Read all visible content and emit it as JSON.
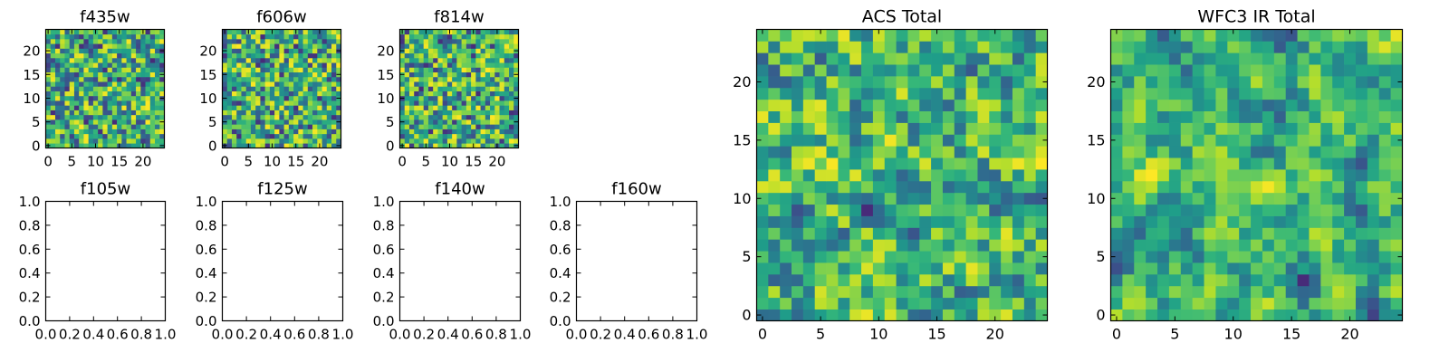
{
  "chart_data": {
    "type": "heatmap",
    "colormap": "viridis",
    "heatmap_panels": [
      {
        "title": "f435w",
        "grid_size": 25,
        "xticks": [
          0,
          5,
          10,
          15,
          20
        ],
        "yticks": [
          0,
          5,
          10,
          15,
          20
        ],
        "xlim": [
          -0.5,
          24.5
        ],
        "ylim": [
          -0.5,
          24.5
        ],
        "seed": 11,
        "smooth": 0
      },
      {
        "title": "f606w",
        "grid_size": 25,
        "xticks": [
          0,
          5,
          10,
          15,
          20
        ],
        "yticks": [
          0,
          5,
          10,
          15,
          20
        ],
        "xlim": [
          -0.5,
          24.5
        ],
        "ylim": [
          -0.5,
          24.5
        ],
        "seed": 23,
        "smooth": 0
      },
      {
        "title": "f814w",
        "grid_size": 25,
        "xticks": [
          0,
          5,
          10,
          15,
          20
        ],
        "yticks": [
          0,
          5,
          10,
          15,
          20
        ],
        "xlim": [
          -0.5,
          24.5
        ],
        "ylim": [
          -0.5,
          24.5
        ],
        "seed": 37,
        "smooth": 0
      },
      {
        "title": "ACS Total",
        "grid_size": 25,
        "xticks": [
          0,
          5,
          10,
          15,
          20
        ],
        "yticks": [
          0,
          5,
          10,
          15,
          20
        ],
        "xlim": [
          -0.5,
          24.5
        ],
        "ylim": [
          -0.5,
          24.5
        ],
        "seed": 51,
        "smooth": 1
      },
      {
        "title": "WFC3 IR Total",
        "grid_size": 25,
        "xticks": [
          0,
          5,
          10,
          15,
          20
        ],
        "yticks": [
          0,
          5,
          10,
          15,
          20
        ],
        "xlim": [
          -0.5,
          24.5
        ],
        "ylim": [
          -0.5,
          24.5
        ],
        "seed": 67,
        "smooth": 2
      }
    ],
    "empty_panels": [
      {
        "title": "f105w",
        "xlim": [
          0.0,
          1.0
        ],
        "ylim": [
          0.0,
          1.0
        ],
        "xticks": [
          "0.0",
          "0.2",
          "0.4",
          "0.6",
          "0.8",
          "1.0"
        ],
        "yticks": [
          "0.0",
          "0.2",
          "0.4",
          "0.6",
          "0.8",
          "1.0"
        ]
      },
      {
        "title": "f125w",
        "xlim": [
          0.0,
          1.0
        ],
        "ylim": [
          0.0,
          1.0
        ],
        "xticks": [
          "0.0",
          "0.2",
          "0.4",
          "0.6",
          "0.8",
          "1.0"
        ],
        "yticks": [
          "0.0",
          "0.2",
          "0.4",
          "0.6",
          "0.8",
          "1.0"
        ]
      },
      {
        "title": "f140w",
        "xlim": [
          0.0,
          1.0
        ],
        "ylim": [
          0.0,
          1.0
        ],
        "xticks": [
          "0.0",
          "0.2",
          "0.4",
          "0.6",
          "0.8",
          "1.0"
        ],
        "yticks": [
          "0.0",
          "0.2",
          "0.4",
          "0.6",
          "0.8",
          "1.0"
        ]
      },
      {
        "title": "f160w",
        "xlim": [
          0.0,
          1.0
        ],
        "ylim": [
          0.0,
          1.0
        ],
        "xticks": [
          "0.0",
          "0.2",
          "0.4",
          "0.6",
          "0.8",
          "1.0"
        ],
        "yticks": [
          "0.0",
          "0.2",
          "0.4",
          "0.6",
          "0.8",
          "1.0"
        ]
      }
    ]
  }
}
